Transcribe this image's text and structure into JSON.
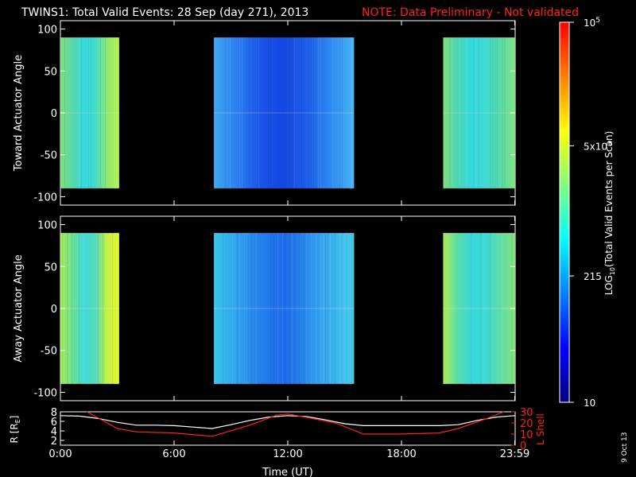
{
  "header": {
    "title": "TWINS1: Total Valid Events: 28 Sep (day 271), 2013",
    "note": "NOTE: Data Preliminary - Not validated",
    "note_color": "#ff2020"
  },
  "side_text": "9 Oct 13",
  "chart_data": [
    {
      "type": "heatmap",
      "ylabel": "Toward Actuator Angle",
      "ylim": [
        -110,
        110
      ],
      "yticks": [
        "100",
        "50",
        "0",
        "-50",
        "-100"
      ],
      "ytick_values": [
        100,
        50,
        0,
        -50,
        -100
      ],
      "data_angle_range": [
        -90,
        90
      ],
      "blocks": [
        {
          "start_hour": 0.0,
          "end_hour": 3.1,
          "level": "5x10^3",
          "gradient": [
            "#7ee07a",
            "#5ad7a8",
            "#35d9df",
            "#45dcc8",
            "#8ee870",
            "#b6f04c"
          ]
        },
        {
          "start_hour": 8.1,
          "end_hour": 15.5,
          "level": "215",
          "gradient": [
            "#3fa8f0",
            "#2a7ff0",
            "#1a55e8",
            "#1448e0",
            "#1e60ec",
            "#2d8af2",
            "#48b4f4"
          ]
        },
        {
          "start_hour": 20.2,
          "end_hour": 24.0,
          "level": "5x10^3",
          "gradient": [
            "#7ee07a",
            "#4ad6b4",
            "#34d8e0",
            "#3edad0",
            "#5adcaa",
            "#7ee27e"
          ]
        }
      ]
    },
    {
      "type": "heatmap",
      "ylabel": "Away Actuator Angle",
      "ylim": [
        -110,
        110
      ],
      "yticks": [
        "100",
        "50",
        "0",
        "-50",
        "-100"
      ],
      "ytick_values": [
        100,
        50,
        0,
        -50,
        -100
      ],
      "data_angle_range": [
        -90,
        90
      ],
      "blocks": [
        {
          "start_hour": 0.0,
          "end_hour": 3.1,
          "level": "5x10^3",
          "gradient": [
            "#a6ee58",
            "#6ee08e",
            "#3fd9d8",
            "#55dcbc",
            "#c6f240",
            "#e6f62e"
          ]
        },
        {
          "start_hour": 8.1,
          "end_hour": 15.5,
          "level": "215",
          "gradient": [
            "#38c8e8",
            "#2ea0ee",
            "#2480ec",
            "#1e6cea",
            "#2a8cee",
            "#3ab0f0",
            "#48cce8"
          ]
        },
        {
          "start_hour": 20.2,
          "end_hour": 24.0,
          "level": "5x10^3",
          "gradient": [
            "#b0f052",
            "#5adcaa",
            "#3ad8dc",
            "#3cd8d4",
            "#5edca6",
            "#86e47a"
          ]
        }
      ]
    },
    {
      "type": "line",
      "xlabel": "Time (UT)",
      "xticks": [
        "0:00",
        "6:00",
        "12:00",
        "18:00",
        "23:59"
      ],
      "xtick_hours": [
        0,
        6,
        12,
        18,
        23.98
      ],
      "ylabel": "R [RE]",
      "ylabel_main": "R [R",
      "ylabel_sub": "E",
      "ylabel_end": "]",
      "ylim": [
        1,
        8
      ],
      "yticks": [
        "8",
        "6",
        "4",
        "2"
      ],
      "ytick_values": [
        8,
        6,
        4,
        2
      ],
      "y2label": "L Shell",
      "y2lim": [
        0,
        30
      ],
      "y2ticks": [
        "30",
        "20",
        "10",
        "0"
      ],
      "y2tick_values": [
        30,
        20,
        10,
        0
      ],
      "series": [
        {
          "axis": "left",
          "color": "#ffffff",
          "x": [
            0,
            1,
            2,
            3,
            4,
            5,
            6,
            7,
            8,
            9,
            10,
            11,
            12,
            13,
            14,
            15,
            16,
            17,
            18,
            19,
            20,
            21,
            22,
            23,
            24
          ],
          "y": [
            7.2,
            7.1,
            6.6,
            5.8,
            5.2,
            5.2,
            5.1,
            4.8,
            4.5,
            5.3,
            6.2,
            6.9,
            7.2,
            7.0,
            6.3,
            5.5,
            5.1,
            5.1,
            5.1,
            5.1,
            5.1,
            5.3,
            6.2,
            6.9,
            7.2
          ]
        },
        {
          "axis": "right",
          "color": "#ff2020",
          "x": [
            1.4,
            3.0,
            4.0,
            6.0,
            8.0,
            10.0,
            11.4,
            12.0,
            13.0,
            14.5,
            16.0,
            18.0,
            20.0,
            21.0,
            22.5,
            23.4
          ],
          "y": [
            30,
            15,
            12,
            11,
            8,
            18,
            27,
            28,
            25,
            20,
            10,
            10,
            11,
            15,
            24,
            30
          ]
        }
      ]
    }
  ],
  "colorbar": {
    "label_main": "LOG",
    "label_sub": "10",
    "label_rest": "(Total Valid Events per Scan)",
    "ticks": [
      {
        "value": 5,
        "base": "10",
        "exp": "5"
      },
      {
        "value": 3.7,
        "base": "5x10",
        "exp": "3"
      },
      {
        "value": 2.33,
        "base": "215",
        "exp": ""
      },
      {
        "value": 1,
        "base": "10",
        "exp": ""
      }
    ],
    "range": [
      1,
      5
    ],
    "colors": [
      "#000080",
      "#0000ff",
      "#0080ff",
      "#00ffff",
      "#80ff80",
      "#ffff00",
      "#ff8000",
      "#ff0000"
    ]
  }
}
